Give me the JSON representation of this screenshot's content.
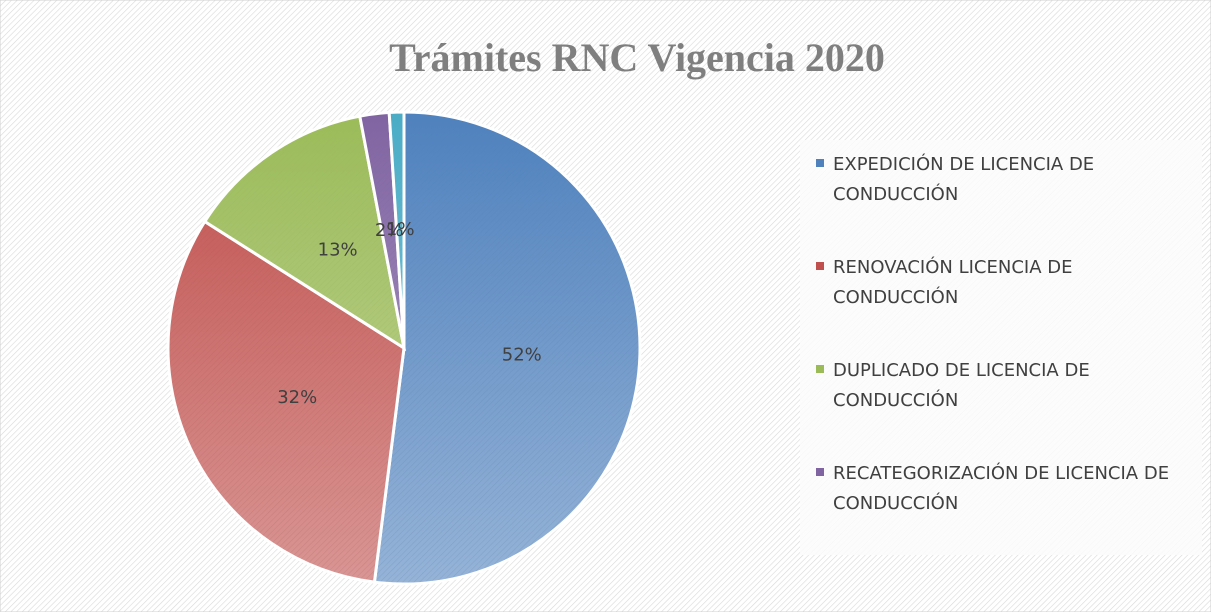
{
  "chart_data": {
    "type": "pie",
    "title": "Trámites RNC Vigencia 2020",
    "categories": [
      "EXPEDICIÓN DE LICENCIA DE CONDUCCIÓN",
      "RENOVACIÓN LICENCIA DE CONDUCCIÓN",
      "DUPLICADO DE LICENCIA DE CONDUCCIÓN",
      "RECATEGORIZACIÓN DE LICENCIA DE CONDUCCIÓN",
      null
    ],
    "values": [
      52,
      32,
      13,
      2,
      1
    ],
    "value_labels": [
      "52%",
      "32%",
      "13%",
      "2%",
      "1%"
    ],
    "colors": [
      "#4f81bd",
      "#c0504d",
      "#9bbb59",
      "#8064a2",
      "#4bacc6"
    ],
    "legend": "right"
  }
}
